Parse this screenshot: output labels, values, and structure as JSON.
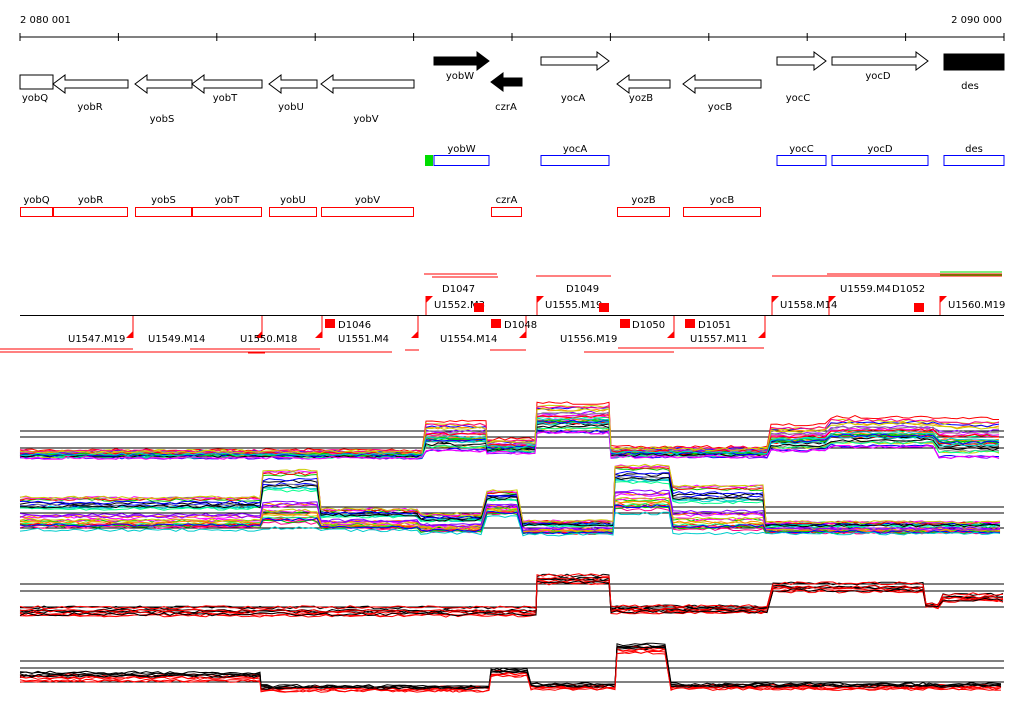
{
  "scale": {
    "start_label": "2 080 001",
    "end_label": "2 090 000"
  },
  "genes": [
    "yobQ",
    "yobR",
    "yobS",
    "yobT",
    "yobU",
    "yobV",
    "yobW",
    "czrA",
    "yocA",
    "yozB",
    "yocB",
    "yocC",
    "yocD",
    "des"
  ],
  "blue_track": [
    "yobW",
    "yocA",
    "yocC",
    "yocD",
    "des"
  ],
  "red_track": [
    "yobQ",
    "yobR",
    "yobS",
    "yobT",
    "yobU",
    "yobV",
    "czrA",
    "yozB",
    "yocB"
  ],
  "transcripts_above": [
    "U1552.M3",
    "D1047",
    "U1555.M19",
    "D1049",
    "U1558.M14",
    "U1559.M4",
    "D1052",
    "U1560.M19"
  ],
  "transcripts_below": [
    "U1547.M19",
    "U1549.M14",
    "U1550.M18",
    "D1046",
    "U1551.M4",
    "U1554.M14",
    "D1048",
    "D1050",
    "U1556.M19",
    "D1051",
    "U1557.M11"
  ],
  "colors": {
    "feature_blue": "#0000ff",
    "feature_red": "#ff0000",
    "highlight_green": "#00dd00"
  }
}
